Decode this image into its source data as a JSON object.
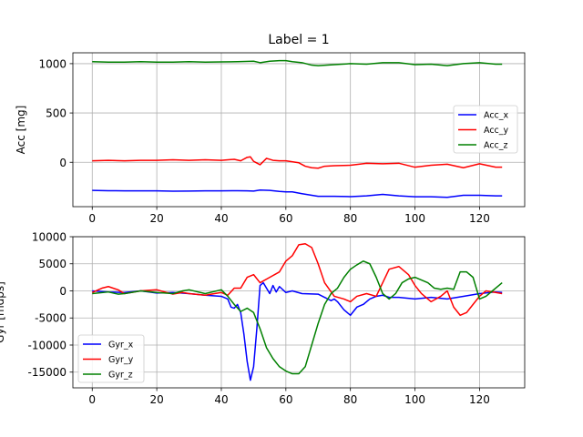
{
  "chart_data": [
    {
      "type": "line",
      "title": "Label = 1",
      "xlabel": "",
      "ylabel": "Acc [mg]",
      "xlim": [
        -6,
        134
      ],
      "ylim": [
        -450,
        1110
      ],
      "xticks": [
        0,
        20,
        40,
        60,
        80,
        100,
        120
      ],
      "yticks": [
        0,
        500,
        1000
      ],
      "grid": true,
      "legend_position": "center-right",
      "series": [
        {
          "name": "Acc_x",
          "color": "#0000ff",
          "x": [
            0,
            5,
            10,
            15,
            20,
            25,
            30,
            35,
            40,
            45,
            48,
            50,
            52,
            55,
            58,
            60,
            62,
            65,
            70,
            75,
            80,
            85,
            90,
            95,
            100,
            105,
            110,
            115,
            120,
            125,
            127
          ],
          "y": [
            -285,
            -288,
            -290,
            -290,
            -290,
            -293,
            -292,
            -290,
            -290,
            -288,
            -290,
            -292,
            -282,
            -285,
            -295,
            -300,
            -300,
            -318,
            -345,
            -345,
            -348,
            -340,
            -325,
            -340,
            -350,
            -350,
            -355,
            -335,
            -335,
            -340,
            -340
          ]
        },
        {
          "name": "Acc_y",
          "color": "#ff0000",
          "x": [
            0,
            5,
            10,
            15,
            20,
            25,
            30,
            35,
            40,
            44,
            46,
            48,
            49,
            50,
            52,
            54,
            56,
            58,
            60,
            64,
            66,
            68,
            70,
            72,
            75,
            80,
            85,
            90,
            95,
            100,
            105,
            110,
            115,
            120,
            125,
            127
          ],
          "y": [
            15,
            20,
            15,
            20,
            20,
            25,
            20,
            25,
            20,
            30,
            15,
            50,
            55,
            10,
            -25,
            40,
            20,
            15,
            15,
            -5,
            -40,
            -55,
            -60,
            -40,
            -35,
            -30,
            -10,
            -15,
            -10,
            -50,
            -30,
            -20,
            -55,
            -15,
            -50,
            -50
          ]
        },
        {
          "name": "Acc_z",
          "color": "#008000",
          "x": [
            0,
            5,
            10,
            15,
            20,
            25,
            30,
            35,
            40,
            45,
            50,
            52,
            55,
            58,
            60,
            62,
            65,
            68,
            70,
            75,
            80,
            85,
            90,
            95,
            100,
            105,
            110,
            115,
            120,
            125,
            127
          ],
          "y": [
            1020,
            1015,
            1015,
            1020,
            1015,
            1015,
            1020,
            1015,
            1018,
            1020,
            1025,
            1010,
            1025,
            1030,
            1030,
            1020,
            1010,
            985,
            980,
            990,
            1000,
            995,
            1010,
            1010,
            990,
            995,
            980,
            1000,
            1010,
            995,
            995
          ]
        }
      ]
    },
    {
      "type": "line",
      "title": "",
      "xlabel": "",
      "ylabel": "Gyr [mdps]",
      "xlim": [
        -6,
        134
      ],
      "ylim": [
        -17900,
        10000
      ],
      "xticks": [
        0,
        20,
        40,
        60,
        80,
        100,
        120
      ],
      "yticks": [
        -15000,
        -10000,
        -5000,
        0,
        5000,
        10000
      ],
      "grid": true,
      "legend_position": "lower-left",
      "series": [
        {
          "name": "Gyr_x",
          "color": "#0000ff",
          "x": [
            0,
            5,
            10,
            15,
            20,
            25,
            30,
            35,
            40,
            42,
            43,
            44,
            45,
            46,
            47,
            48,
            49,
            50,
            51,
            52,
            53,
            54,
            55,
            56,
            57,
            58,
            60,
            62,
            65,
            70,
            74,
            75,
            76,
            78,
            80,
            82,
            84,
            86,
            88,
            90,
            92,
            95,
            100,
            105,
            110,
            115,
            120,
            125,
            127
          ],
          "y": [
            0,
            -200,
            -300,
            0,
            -400,
            -300,
            -500,
            -800,
            -1000,
            -1500,
            -3000,
            -3200,
            -2500,
            -4000,
            -8000,
            -13000,
            -16500,
            -14000,
            -7000,
            1000,
            1500,
            500,
            -500,
            1000,
            -200,
            800,
            -300,
            0,
            -500,
            -600,
            -1800,
            -1500,
            -2000,
            -3500,
            -4500,
            -3000,
            -2500,
            -1500,
            -1000,
            -800,
            -1200,
            -1200,
            -1500,
            -1200,
            -1500,
            -1000,
            -500,
            -200,
            -300
          ]
        },
        {
          "name": "Gyr_y",
          "color": "#ff0000",
          "x": [
            0,
            3,
            5,
            8,
            10,
            15,
            20,
            25,
            28,
            30,
            35,
            40,
            42,
            44,
            46,
            48,
            50,
            52,
            55,
            58,
            60,
            62,
            64,
            66,
            68,
            70,
            72,
            75,
            78,
            80,
            82,
            85,
            88,
            90,
            92,
            95,
            98,
            100,
            102,
            105,
            108,
            110,
            112,
            114,
            116,
            118,
            120,
            122,
            125,
            127
          ],
          "y": [
            -300,
            500,
            800,
            200,
            -500,
            0,
            200,
            -600,
            -300,
            -500,
            -800,
            -300,
            -800,
            500,
            500,
            2500,
            3000,
            1500,
            2500,
            3500,
            5500,
            6500,
            8500,
            8700,
            8000,
            5000,
            1500,
            -1000,
            -1500,
            -2000,
            -1000,
            -500,
            -1000,
            1500,
            4000,
            4500,
            3000,
            1000,
            -500,
            -2000,
            -1000,
            0,
            -3000,
            -4500,
            -4000,
            -2500,
            -1000,
            0,
            -300,
            -500
          ]
        },
        {
          "name": "Gyr_z",
          "color": "#008000",
          "x": [
            0,
            5,
            8,
            10,
            15,
            20,
            25,
            28,
            30,
            35,
            40,
            42,
            44,
            46,
            48,
            50,
            52,
            54,
            56,
            58,
            60,
            62,
            64,
            66,
            68,
            70,
            72,
            74,
            76,
            78,
            80,
            82,
            84,
            86,
            88,
            90,
            92,
            94,
            96,
            98,
            100,
            102,
            104,
            106,
            108,
            110,
            112,
            114,
            116,
            118,
            120,
            122,
            124,
            126,
            127
          ],
          "y": [
            -500,
            -200,
            -600,
            -500,
            0,
            -300,
            -500,
            0,
            200,
            -500,
            200,
            -1000,
            -2500,
            -3800,
            -3200,
            -4000,
            -7000,
            -10500,
            -12500,
            -14000,
            -14800,
            -15300,
            -15300,
            -14000,
            -10000,
            -6000,
            -2500,
            -500,
            500,
            2500,
            4000,
            4800,
            5500,
            5000,
            2500,
            -500,
            -1500,
            -500,
            1500,
            2200,
            2500,
            2000,
            1500,
            500,
            300,
            500,
            300,
            3500,
            3500,
            2500,
            -1500,
            -1000,
            0,
            1000,
            1500
          ]
        }
      ]
    }
  ]
}
